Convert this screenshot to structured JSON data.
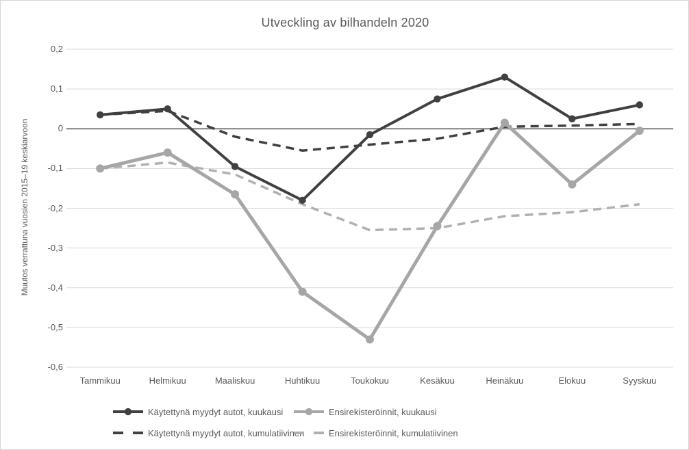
{
  "chart_data": {
    "type": "line",
    "title": "Utveckling av bilhandeln 2020",
    "xlabel": "",
    "ylabel": "Muutos verrattuna vuosien 2015–19 keskiarvoon",
    "categories": [
      "Tammikuu",
      "Helmikuu",
      "Maaliskuu",
      "Huhtikuu",
      "Toukokuu",
      "Kesäkuu",
      "Heinäkuu",
      "Elokuu",
      "Syyskuu"
    ],
    "y_ticks": [
      {
        "label": "0,2",
        "value": 0.2
      },
      {
        "label": "0,1",
        "value": 0.1
      },
      {
        "label": "0",
        "value": 0
      },
      {
        "label": "-0,1",
        "value": -0.1
      },
      {
        "label": "-0,2",
        "value": -0.2
      },
      {
        "label": "-0,3",
        "value": -0.3
      },
      {
        "label": "-0,4",
        "value": -0.4
      },
      {
        "label": "-0,5",
        "value": -0.5
      },
      {
        "label": "-0,6",
        "value": -0.6
      }
    ],
    "ylim": [
      -0.6,
      0.2
    ],
    "grid": true,
    "legend_position": "bottom",
    "series": [
      {
        "name": "Käytettynä myydyt autot, kuukausi",
        "style": "solid",
        "markers": true,
        "color": "#404040",
        "values": [
          0.035,
          0.05,
          -0.095,
          -0.18,
          -0.015,
          0.075,
          0.13,
          0.025,
          0.06
        ]
      },
      {
        "name": "Ensirekisteröinnit, kuukausi",
        "style": "solid",
        "markers": true,
        "color": "#a6a6a6",
        "values": [
          -0.1,
          -0.06,
          -0.165,
          -0.41,
          -0.53,
          -0.245,
          0.015,
          -0.14,
          -0.005
        ]
      },
      {
        "name": "Käytettynä myydyt autot, kumulatiivinen",
        "style": "dashed",
        "markers": false,
        "color": "#404040",
        "values": [
          0.035,
          0.045,
          -0.02,
          -0.055,
          -0.04,
          -0.025,
          0.005,
          0.008,
          0.012
        ]
      },
      {
        "name": "Ensirekisteröinnit, kumulatiivinen",
        "style": "dashed",
        "markers": false,
        "color": "#b0b0b0",
        "values": [
          -0.1,
          -0.085,
          -0.115,
          -0.19,
          -0.255,
          -0.25,
          -0.22,
          -0.21,
          -0.19
        ]
      }
    ],
    "colors": {
      "gridline": "#d9d9d9",
      "zero_line": "#7f7f7f",
      "text": "#595959",
      "background": "#ffffff",
      "border": "#d6d6d6"
    }
  }
}
